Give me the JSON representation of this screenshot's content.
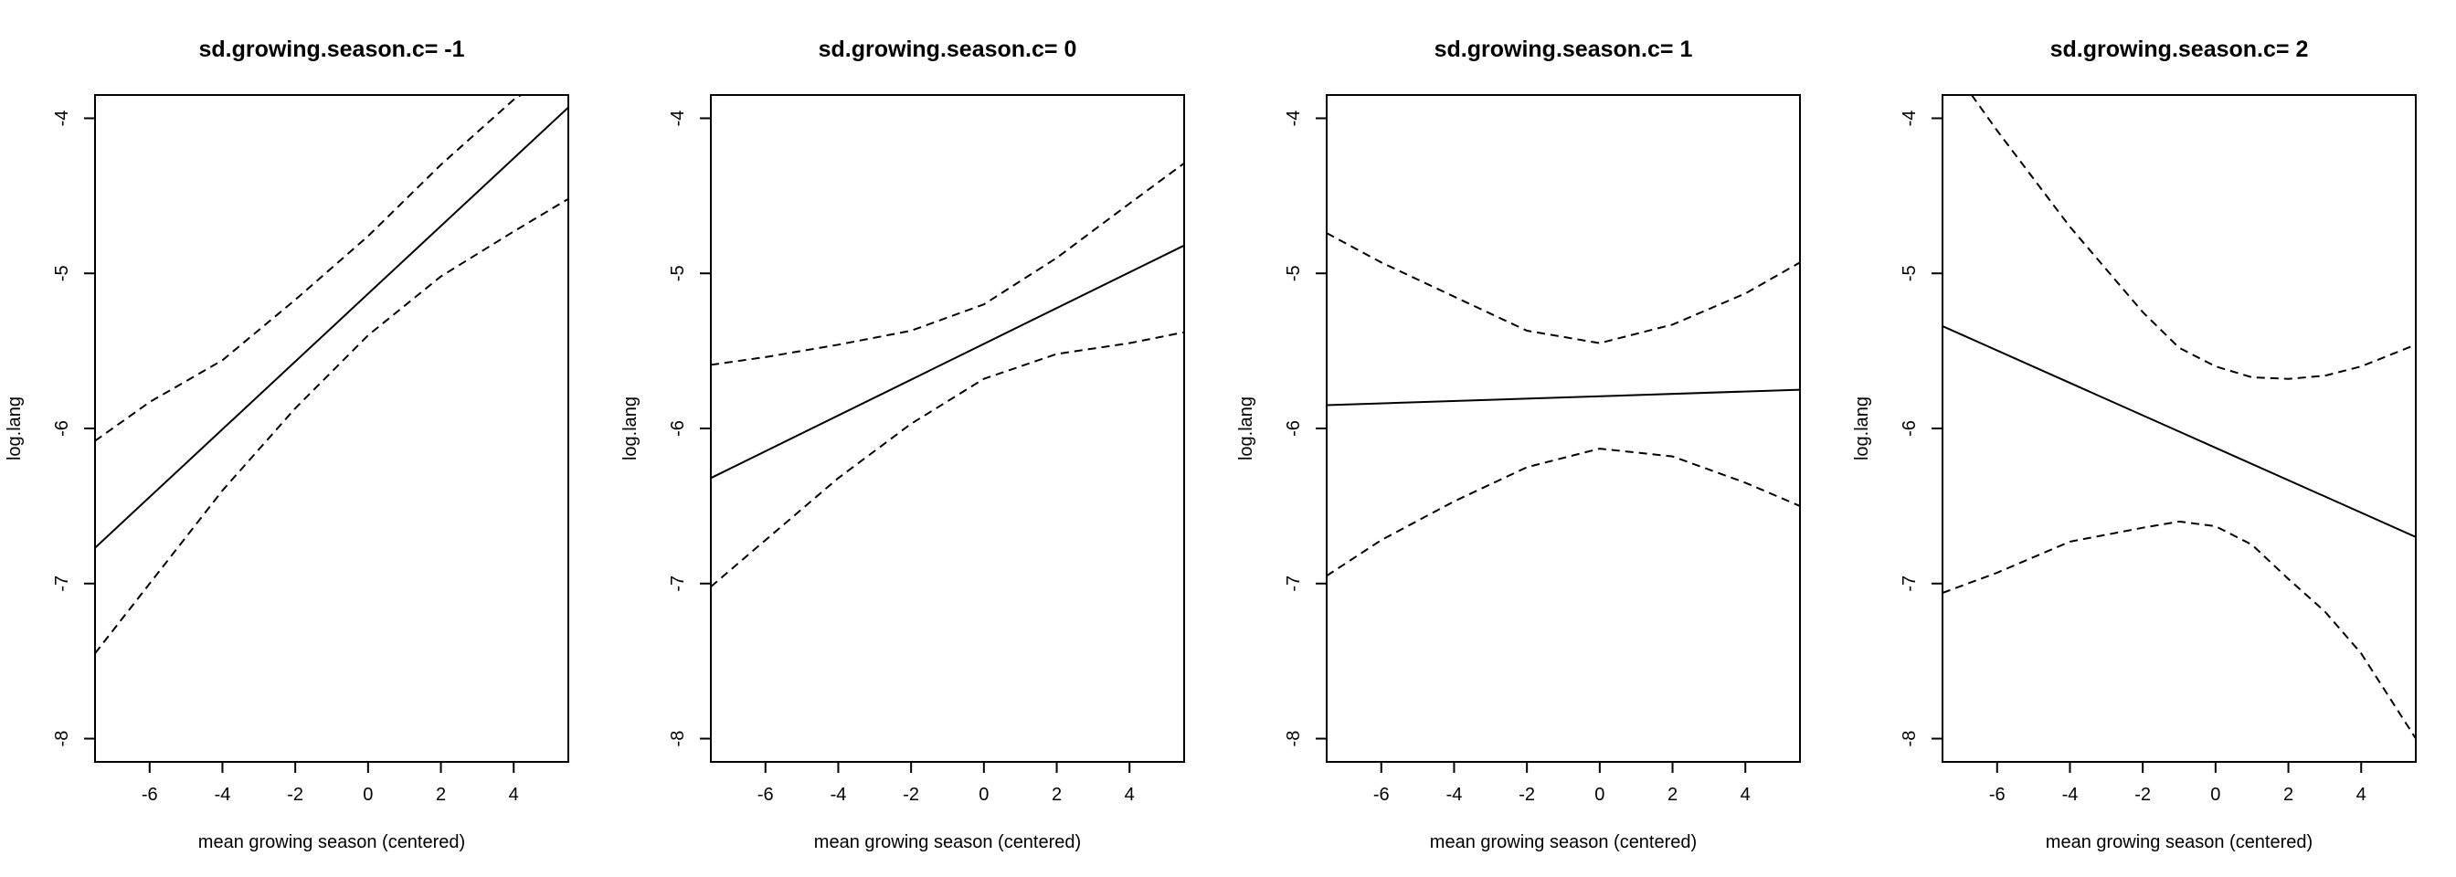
{
  "chart_data": [
    {
      "type": "line",
      "title": "sd.growing.season.c= -1",
      "xlabel": "mean growing season (centered)",
      "ylabel": "log.lang",
      "xlim": [
        -7.5,
        5.5
      ],
      "ylim": [
        -8.15,
        -3.85
      ],
      "xticks": [
        "-6",
        "-4",
        "-2",
        "0",
        "2",
        "4"
      ],
      "yticks": [
        "-8",
        "-7",
        "-6",
        "-5",
        "-4"
      ],
      "series": [
        {
          "style": "solid",
          "x": [
            -7.5,
            5.5
          ],
          "y": [
            -6.77,
            -3.93
          ]
        },
        {
          "style": "dashed",
          "x": [
            -7.5,
            -6,
            -4,
            -2,
            0,
            2,
            4,
            4.2
          ],
          "y": [
            -6.08,
            -5.83,
            -5.56,
            -5.17,
            -4.76,
            -4.3,
            -3.88,
            -3.85
          ]
        },
        {
          "style": "dashed",
          "x": [
            -7.5,
            -6,
            -4,
            -2,
            0,
            2,
            4,
            5.5
          ],
          "y": [
            -7.45,
            -7.0,
            -6.4,
            -5.87,
            -5.4,
            -5.02,
            -4.73,
            -4.52
          ]
        }
      ]
    },
    {
      "type": "line",
      "title": "sd.growing.season.c= 0",
      "xlabel": "mean growing season (centered)",
      "ylabel": "log.lang",
      "xlim": [
        -7.5,
        5.5
      ],
      "ylim": [
        -8.15,
        -3.85
      ],
      "xticks": [
        "-6",
        "-4",
        "-2",
        "0",
        "2",
        "4"
      ],
      "yticks": [
        "-8",
        "-7",
        "-6",
        "-5",
        "-4"
      ],
      "series": [
        {
          "style": "solid",
          "x": [
            -7.5,
            5.5
          ],
          "y": [
            -6.32,
            -4.82
          ]
        },
        {
          "style": "dashed",
          "x": [
            -7.5,
            -6,
            -4,
            -2,
            0,
            2,
            4,
            5.5
          ],
          "y": [
            -5.59,
            -5.54,
            -5.46,
            -5.37,
            -5.2,
            -4.9,
            -4.55,
            -4.29
          ]
        },
        {
          "style": "dashed",
          "x": [
            -7.5,
            -6,
            -4,
            -2,
            0,
            2,
            4,
            5.5
          ],
          "y": [
            -7.02,
            -6.72,
            -6.32,
            -5.97,
            -5.68,
            -5.52,
            -5.45,
            -5.38
          ]
        }
      ]
    },
    {
      "type": "line",
      "title": "sd.growing.season.c= 1",
      "xlabel": "mean growing season (centered)",
      "ylabel": "log.lang",
      "xlim": [
        -7.5,
        5.5
      ],
      "ylim": [
        -8.15,
        -3.85
      ],
      "xticks": [
        "-6",
        "-4",
        "-2",
        "0",
        "2",
        "4"
      ],
      "yticks": [
        "-8",
        "-7",
        "-6",
        "-5",
        "-4"
      ],
      "series": [
        {
          "style": "solid",
          "x": [
            -7.5,
            5.5
          ],
          "y": [
            -5.85,
            -5.75
          ]
        },
        {
          "style": "dashed",
          "x": [
            -7.5,
            -6,
            -4,
            -2,
            0,
            2,
            4,
            5.5
          ],
          "y": [
            -4.74,
            -4.93,
            -5.15,
            -5.37,
            -5.45,
            -5.33,
            -5.13,
            -4.93
          ]
        },
        {
          "style": "dashed",
          "x": [
            -7.5,
            -6,
            -4,
            -2,
            0,
            2,
            4,
            5.5
          ],
          "y": [
            -6.95,
            -6.72,
            -6.47,
            -6.25,
            -6.13,
            -6.18,
            -6.35,
            -6.5
          ]
        }
      ]
    },
    {
      "type": "line",
      "title": "sd.growing.season.c= 2",
      "xlabel": "mean growing season (centered)",
      "ylabel": "log.lang",
      "xlim": [
        -7.5,
        5.5
      ],
      "ylim": [
        -8.15,
        -3.85
      ],
      "xticks": [
        "-6",
        "-4",
        "-2",
        "0",
        "2",
        "4"
      ],
      "yticks": [
        "-8",
        "-7",
        "-6",
        "-5",
        "-4"
      ],
      "series": [
        {
          "style": "solid",
          "x": [
            -7.5,
            5.5
          ],
          "y": [
            -5.34,
            -6.7
          ]
        },
        {
          "style": "dashed",
          "x": [
            -6.7,
            -6,
            -4,
            -2,
            -1,
            0,
            1,
            2,
            3,
            4,
            5.5
          ],
          "y": [
            -3.85,
            -4.08,
            -4.7,
            -5.25,
            -5.48,
            -5.6,
            -5.67,
            -5.68,
            -5.66,
            -5.6,
            -5.46
          ]
        },
        {
          "style": "dashed",
          "x": [
            -7.5,
            -6,
            -4,
            -2,
            -1,
            0,
            1,
            2,
            3,
            4,
            5.5
          ],
          "y": [
            -7.06,
            -6.93,
            -6.73,
            -6.64,
            -6.6,
            -6.63,
            -6.75,
            -6.97,
            -7.18,
            -7.45,
            -8.0
          ]
        }
      ]
    }
  ]
}
